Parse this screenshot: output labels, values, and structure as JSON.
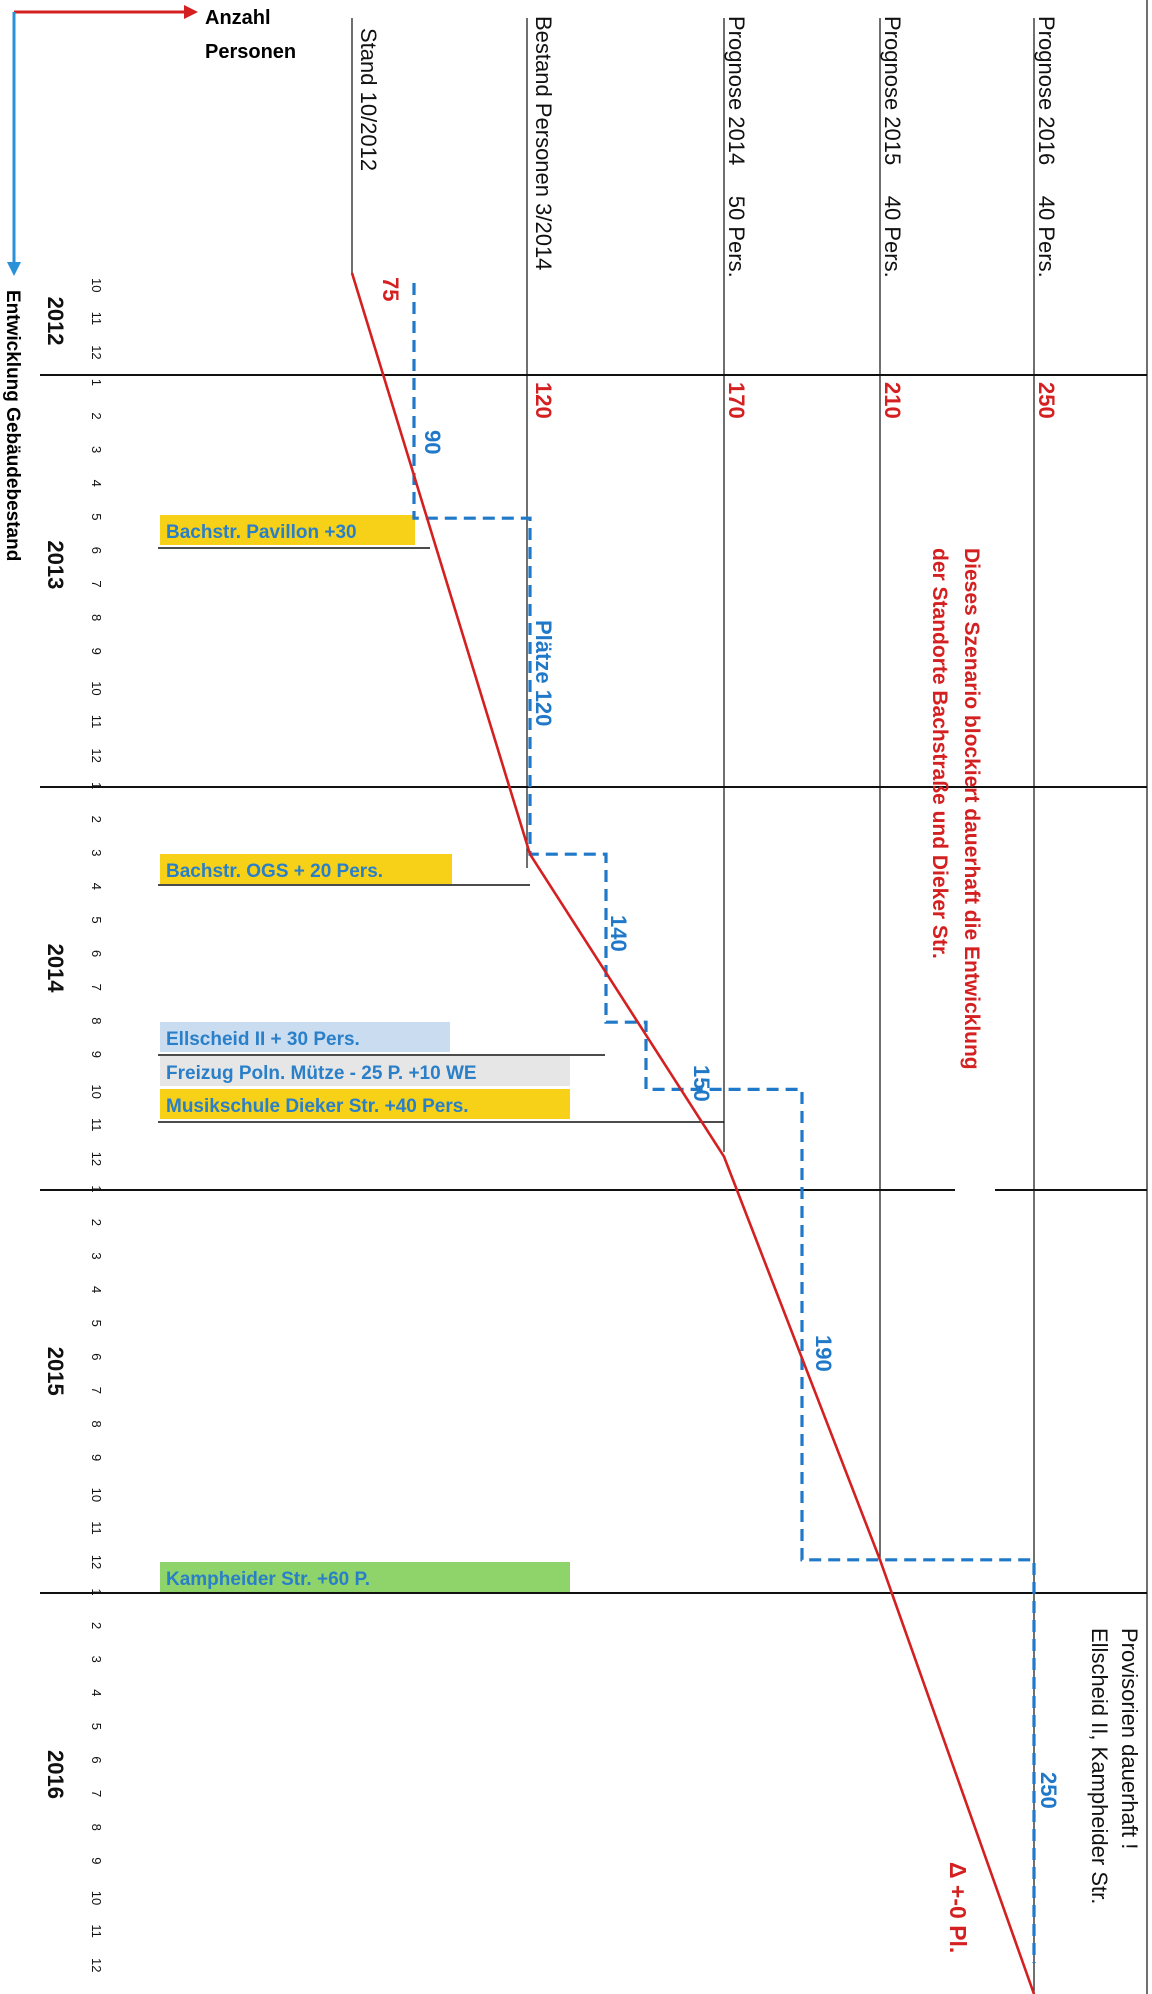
{
  "axes": {
    "horizontal_label_line1": "Anzahl",
    "horizontal_label_line2": "Personen",
    "vertical_label": "Entwicklung Gebäudebestand"
  },
  "years": [
    "2012",
    "2013",
    "2014",
    "2015",
    "2016"
  ],
  "month_labels": [
    "10",
    "11",
    "12",
    "1",
    "2",
    "3",
    "4",
    "5",
    "6",
    "7",
    "8",
    "9",
    "10",
    "11",
    "12",
    "1",
    "2",
    "3",
    "4",
    "5",
    "6",
    "7",
    "8",
    "9",
    "10",
    "11",
    "12",
    "1",
    "2",
    "3",
    "4",
    "5",
    "6",
    "7",
    "8",
    "9",
    "10",
    "11",
    "12",
    "1",
    "2",
    "3",
    "4",
    "5",
    "6",
    "7",
    "8",
    "9",
    "10",
    "11",
    "12"
  ],
  "column_headers": [
    {
      "label": "Stand 10/2012",
      "value": "75"
    },
    {
      "label": "Bestand Personen 3/2014",
      "value": "120"
    },
    {
      "label": "Prognose 2014     50 Pers.",
      "value": "170"
    },
    {
      "label": "Prognose 2015     40 Pers.",
      "value": "210"
    },
    {
      "label": "Prognose 2016     40 Pers.",
      "value": "250"
    }
  ],
  "capacity_labels": [
    "90",
    "Plätze 120",
    "140",
    "150",
    "190",
    "250"
  ],
  "events": [
    {
      "text": "Bachstr. Pavillon   +30",
      "color": "#f7d117"
    },
    {
      "text": "Bachstr. OGS     + 20 Pers.",
      "color": "#f7d117"
    },
    {
      "text": "Ellscheid II     + 30 Pers.",
      "color": "#c9dcf0"
    },
    {
      "text": "Freizug Poln. Mütze - 25 P. +10 WE",
      "color": "#e6e6e6"
    },
    {
      "text": "Musikschule Dieker Str.      +40 Pers.",
      "color": "#f7d117"
    },
    {
      "text": "Kampheider Str.     +60 P.",
      "color": "#8fd46a"
    }
  ],
  "annotations": {
    "scenario_line1": "Dieses Szenario blockiert dauerhaft die Entwicklung",
    "scenario_line2": "der Standorte Bachstraße und Dieker Str.",
    "provisorien_line1": "Provisorien dauerhaft !",
    "provisorien_line2": "Ellscheid II, Kampheider Str.",
    "delta": "Δ +-0 Pl."
  },
  "colors": {
    "persons_line": "#d42020",
    "capacity_line": "#1f78c8",
    "axis_arrow_horizontal": "#d42020",
    "axis_arrow_vertical": "#2a90d8",
    "event_text": "#2a7fc9",
    "value_text": "#d42020"
  },
  "chart_data": {
    "type": "line",
    "orientation": "rotated: time runs top-to-bottom, persons increase left-to-right",
    "x_axis": "Entwicklung Gebäudebestand (months 10/2012 – 12/2016)",
    "y_axis": "Anzahl Personen",
    "series": [
      {
        "name": "Bestand / Prognose Personen",
        "points": [
          {
            "date": "2012-10",
            "value": 75
          },
          {
            "date": "2014-03",
            "value": 120
          },
          {
            "date": "2014-12",
            "value": 170
          },
          {
            "date": "2015-12",
            "value": 210
          },
          {
            "date": "2016-12",
            "value": 250
          }
        ]
      },
      {
        "name": "Plätze",
        "points": [
          {
            "date": "2012-10",
            "value": 75
          },
          {
            "date": "2012-12",
            "value": 75
          },
          {
            "date": "2012-12",
            "value": 90
          },
          {
            "date": "2013-05",
            "value": 90
          },
          {
            "date": "2013-05",
            "value": 120
          },
          {
            "date": "2014-03",
            "value": 120
          },
          {
            "date": "2014-03",
            "value": 140
          },
          {
            "date": "2014-08",
            "value": 140
          },
          {
            "date": "2014-08",
            "value": 150
          },
          {
            "date": "2014-10",
            "value": 150
          },
          {
            "date": "2014-10",
            "value": 190
          },
          {
            "date": "2015-12",
            "value": 190
          },
          {
            "date": "2015-12",
            "value": 250
          },
          {
            "date": "2016-12",
            "value": 250
          }
        ]
      }
    ],
    "events": [
      {
        "date": "2013-05",
        "label": "Bachstr. Pavillon   +30"
      },
      {
        "date": "2014-03",
        "label": "Bachstr. OGS     + 20 Pers."
      },
      {
        "date": "2014-08",
        "label": "Ellscheid II     + 30 Pers."
      },
      {
        "date": "2014-09",
        "label": "Freizug Poln. Mütze - 25 P. +10 WE"
      },
      {
        "date": "2014-10",
        "label": "Musikschule Dieker Str.      +40 Pers."
      },
      {
        "date": "2015-12",
        "label": "Kampheider Str.     +60 P."
      }
    ]
  }
}
